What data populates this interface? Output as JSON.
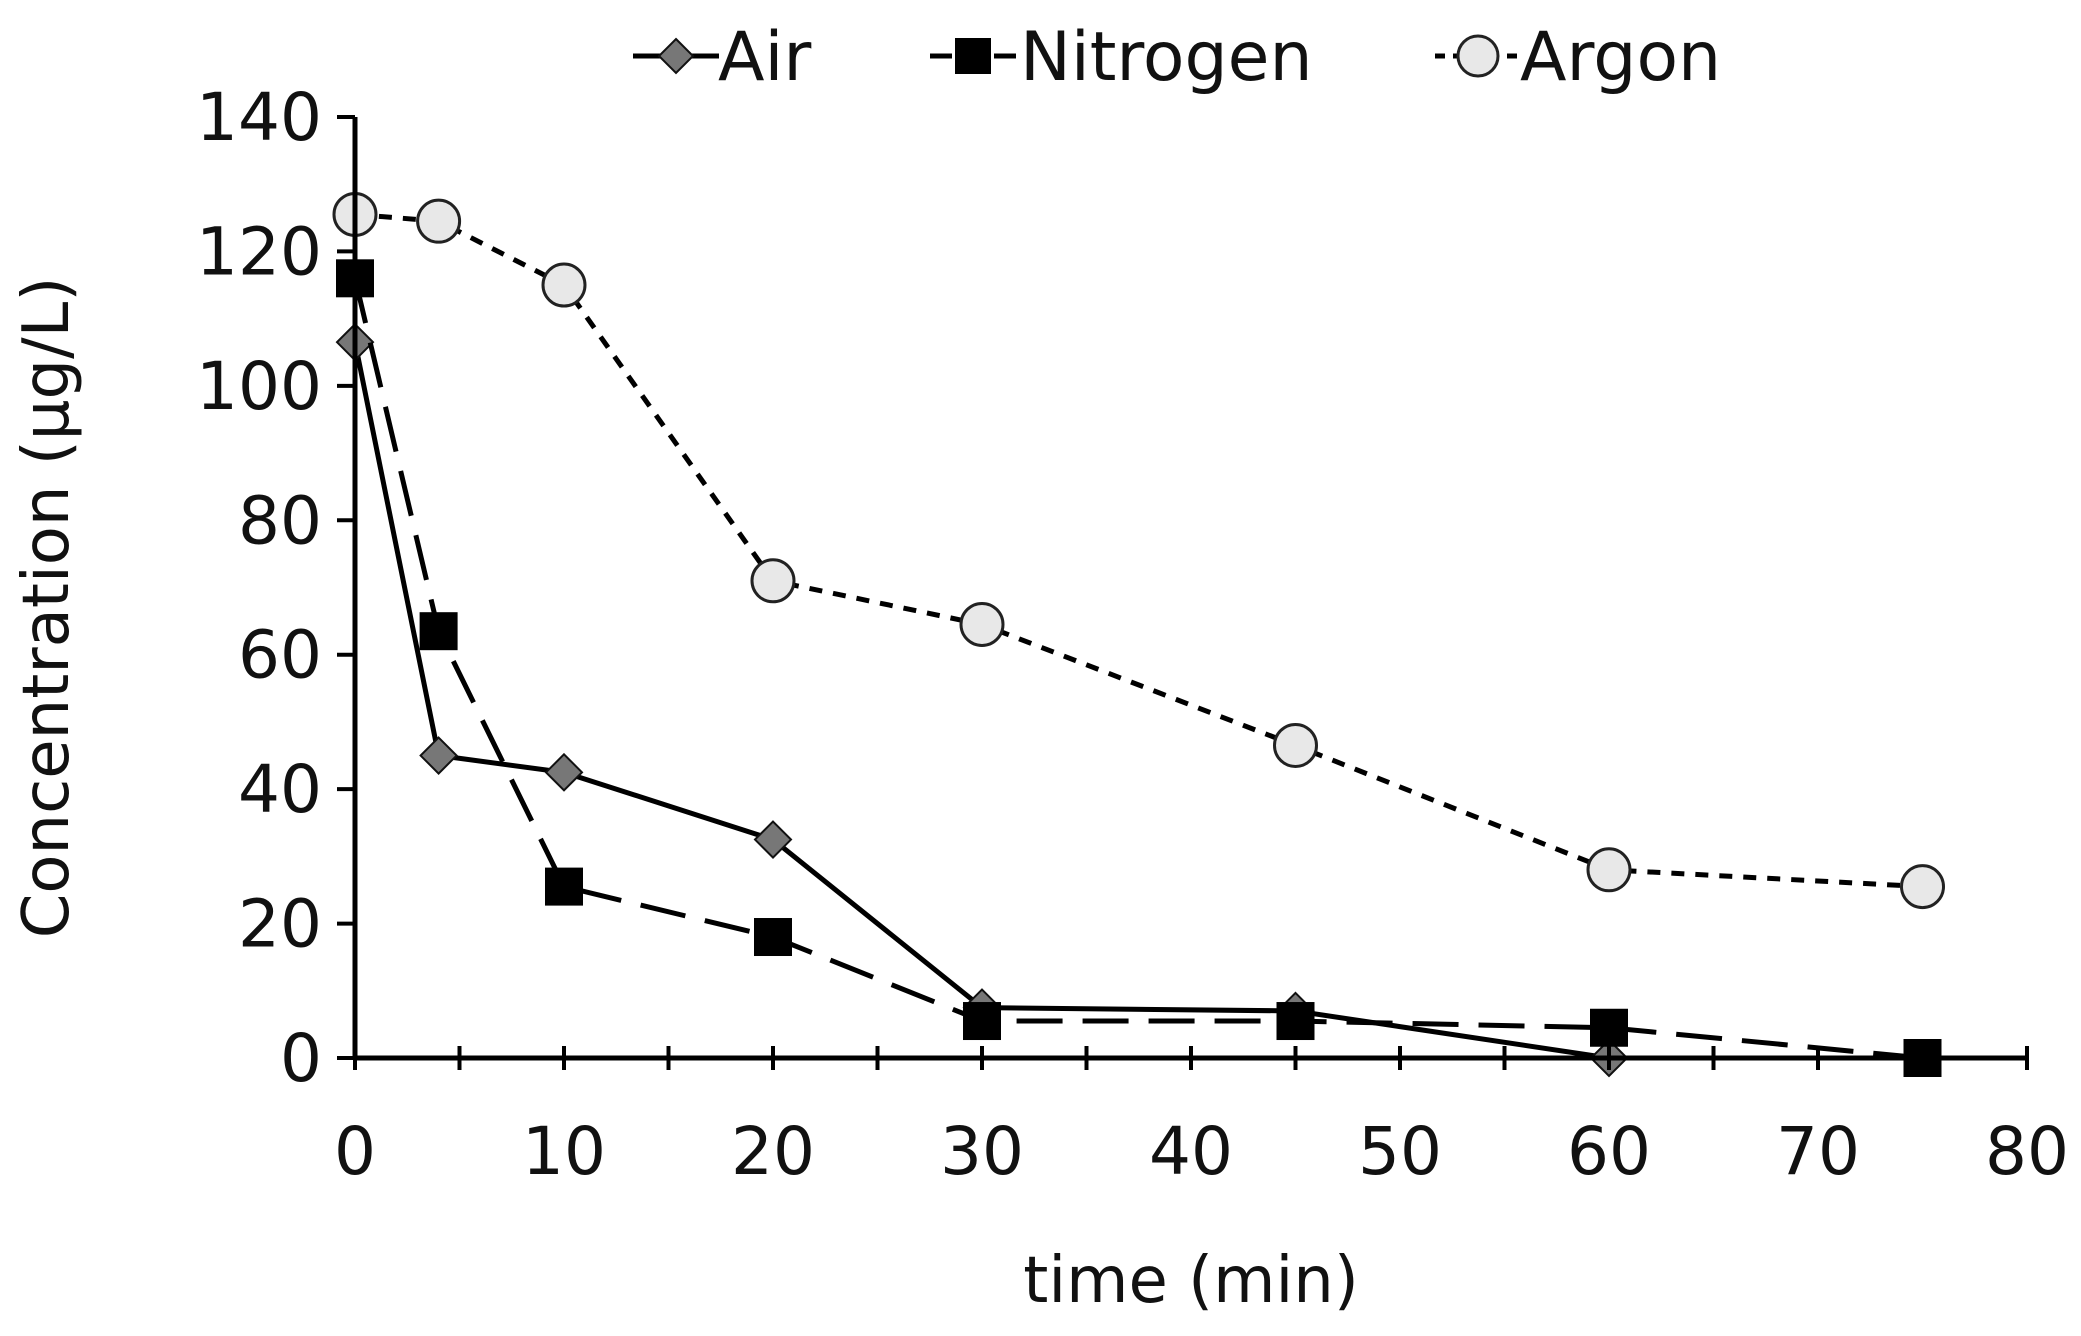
{
  "chart_data": {
    "type": "line",
    "xlabel": "time (min)",
    "ylabel": "Concentration (µg/L)",
    "xlim": [
      0,
      80
    ],
    "ylim": [
      0,
      140
    ],
    "xticks": [
      0,
      10,
      20,
      30,
      40,
      50,
      60,
      70,
      80
    ],
    "yticks": [
      0,
      20,
      40,
      60,
      80,
      100,
      120,
      140
    ],
    "x_minor_tick_step": 5,
    "grid": false,
    "legend_position": "top",
    "series": [
      {
        "name": "Air",
        "marker": "diamond",
        "line_style": "solid",
        "marker_fill": "#777777",
        "points": [
          [
            0,
            106.5
          ],
          [
            4,
            45
          ],
          [
            10,
            42.5
          ],
          [
            20,
            32.5
          ],
          [
            30,
            7.5
          ],
          [
            45,
            7
          ],
          [
            60,
            0
          ]
        ]
      },
      {
        "name": "Nitrogen",
        "marker": "square",
        "line_style": "long-dash",
        "marker_fill": "#000000",
        "points": [
          [
            0,
            116
          ],
          [
            4,
            63.5
          ],
          [
            10,
            25.5
          ],
          [
            20,
            18
          ],
          [
            30,
            5.5
          ],
          [
            45,
            5.5
          ],
          [
            60,
            4.5
          ],
          [
            75,
            0
          ]
        ]
      },
      {
        "name": "Argon",
        "marker": "circle",
        "line_style": "short-dash",
        "marker_fill": "#e8e8e8",
        "points": [
          [
            0,
            125.5
          ],
          [
            4,
            124.5
          ],
          [
            10,
            115
          ],
          [
            20,
            71
          ],
          [
            30,
            64.5
          ],
          [
            45,
            46.5
          ],
          [
            60,
            28
          ],
          [
            75,
            25.5
          ]
        ]
      }
    ]
  }
}
